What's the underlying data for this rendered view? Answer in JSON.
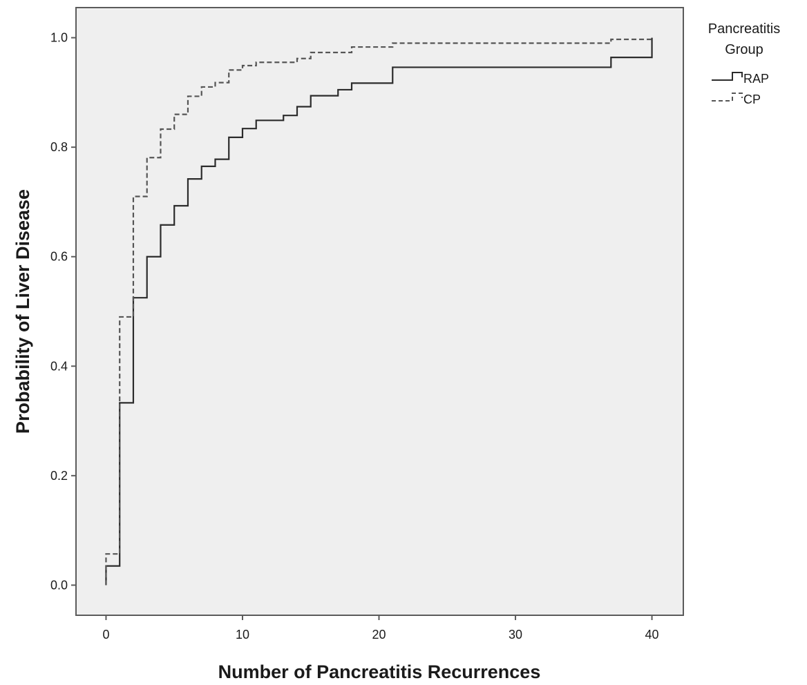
{
  "chart_data": {
    "type": "line",
    "step": true,
    "title": "",
    "xlabel": "Number of Pancreatitis Recurrences",
    "ylabel": "Probability of Liver Disease",
    "xlim": [
      -2.2,
      42.3
    ],
    "ylim": [
      -0.055,
      1.055
    ],
    "x_ticks": [
      0,
      10,
      20,
      30,
      40
    ],
    "x_tick_labels": [
      "0",
      "10",
      "20",
      "30",
      "40"
    ],
    "y_ticks": [
      0.0,
      0.2,
      0.4,
      0.6,
      0.8,
      1.0
    ],
    "y_tick_labels": [
      "0.0",
      "0.2",
      "0.4",
      "0.6",
      "0.8",
      "1.0"
    ],
    "grid": false,
    "background": "#efefef",
    "legend": {
      "title_lines": [
        "Pancreatitis",
        "Group"
      ],
      "placement": "outside-top-right"
    },
    "series": [
      {
        "name": "RAP",
        "line_style": "solid",
        "color": "#2b2b2b",
        "points": [
          [
            0,
            0.0
          ],
          [
            0,
            0.035
          ],
          [
            1,
            0.333
          ],
          [
            2,
            0.525
          ],
          [
            3,
            0.6
          ],
          [
            4,
            0.658
          ],
          [
            5,
            0.693
          ],
          [
            6,
            0.742
          ],
          [
            7,
            0.765
          ],
          [
            8,
            0.778
          ],
          [
            9,
            0.818
          ],
          [
            10,
            0.834
          ],
          [
            11,
            0.849
          ],
          [
            13,
            0.858
          ],
          [
            14,
            0.874
          ],
          [
            15,
            0.894
          ],
          [
            17,
            0.905
          ],
          [
            18,
            0.917
          ],
          [
            21,
            0.946
          ],
          [
            37,
            0.964
          ],
          [
            40,
            1.0
          ]
        ]
      },
      {
        "name": "CP",
        "line_style": "dashed",
        "color": "#555555",
        "points": [
          [
            0,
            0.0
          ],
          [
            0,
            0.057
          ],
          [
            1,
            0.49
          ],
          [
            2,
            0.71
          ],
          [
            3,
            0.781
          ],
          [
            4,
            0.833
          ],
          [
            5,
            0.86
          ],
          [
            6,
            0.893
          ],
          [
            7,
            0.91
          ],
          [
            8,
            0.918
          ],
          [
            9,
            0.941
          ],
          [
            10,
            0.949
          ],
          [
            11,
            0.955
          ],
          [
            14,
            0.962
          ],
          [
            15,
            0.973
          ],
          [
            18,
            0.983
          ],
          [
            21,
            0.99
          ],
          [
            37,
            0.997
          ],
          [
            40,
            1.0
          ]
        ]
      }
    ]
  }
}
